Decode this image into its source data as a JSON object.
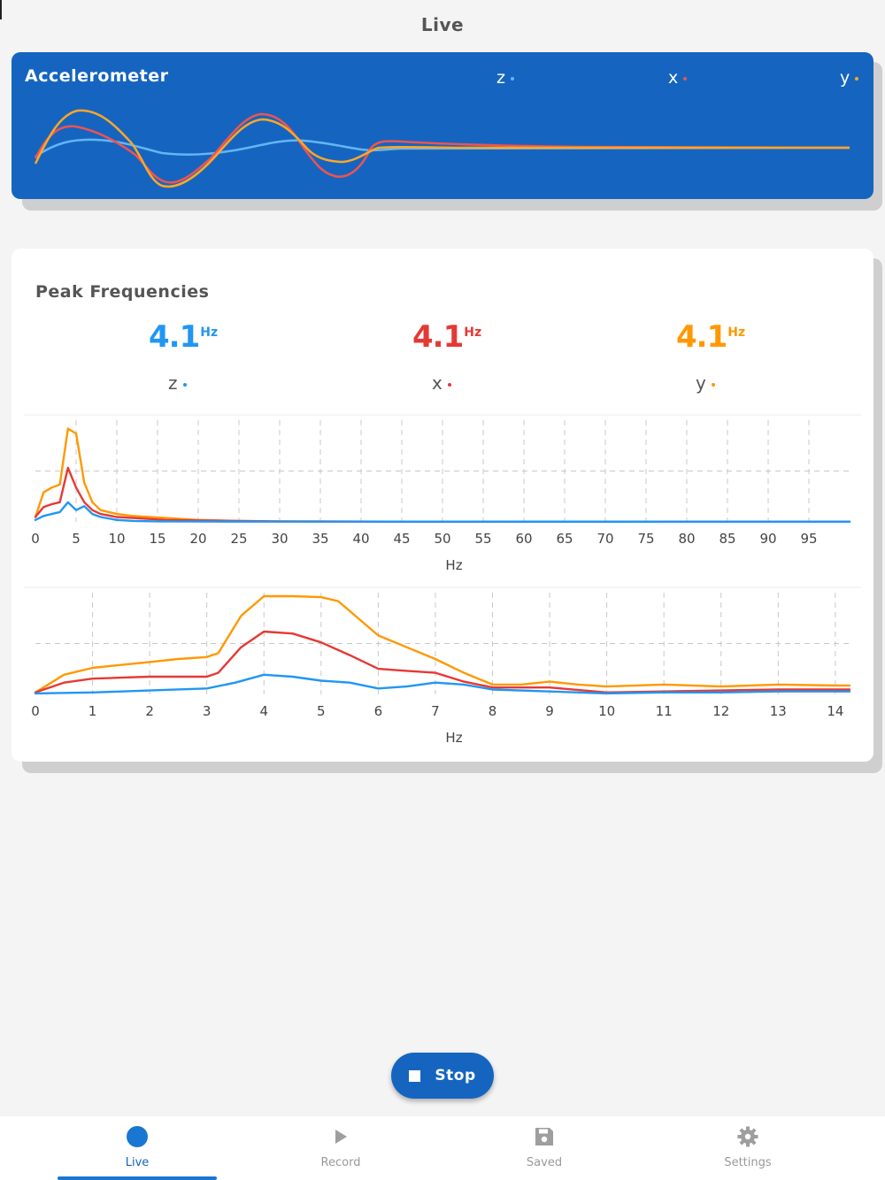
{
  "app": {
    "title": "Live"
  },
  "colors": {
    "primary": "#1565c0",
    "z": "#2196f3",
    "x": "#e53935",
    "y": "#ff9800",
    "z_on_blue": "#64b5f6",
    "x_on_blue": "#ef5350",
    "y_on_blue": "#ffa726"
  },
  "accelerometer": {
    "title": "Accelerometer",
    "axes": [
      {
        "key": "z",
        "label": "z"
      },
      {
        "key": "x",
        "label": "x"
      },
      {
        "key": "y",
        "label": "y"
      }
    ]
  },
  "peak": {
    "title": "Peak Frequencies",
    "unit": "Hz",
    "values": [
      {
        "axis": "z",
        "value": "4.1",
        "unit": "Hz"
      },
      {
        "axis": "x",
        "value": "4.1",
        "unit": "Hz"
      },
      {
        "axis": "y",
        "value": "4.1",
        "unit": "Hz"
      }
    ]
  },
  "chart_data": [
    {
      "type": "line",
      "xlabel": "Hz",
      "xlim": [
        0,
        100
      ],
      "xticks": [
        0,
        5,
        10,
        15,
        20,
        25,
        30,
        35,
        40,
        45,
        50,
        55,
        60,
        65,
        70,
        75,
        80,
        85,
        90,
        95
      ],
      "grid": true,
      "series": [
        {
          "name": "y",
          "points": [
            [
              0,
              0.05
            ],
            [
              1,
              0.3
            ],
            [
              2,
              0.35
            ],
            [
              3,
              0.38
            ],
            [
              4,
              0.95
            ],
            [
              5,
              0.9
            ],
            [
              6,
              0.4
            ],
            [
              7,
              0.2
            ],
            [
              8,
              0.12
            ],
            [
              10,
              0.08
            ],
            [
              12,
              0.06
            ],
            [
              14,
              0.05
            ],
            [
              16,
              0.04
            ],
            [
              18,
              0.03
            ],
            [
              20,
              0.02
            ],
            [
              25,
              0.01
            ],
            [
              30,
              0.005
            ],
            [
              50,
              0.002
            ],
            [
              100,
              0.002
            ]
          ]
        },
        {
          "name": "x",
          "points": [
            [
              0,
              0.05
            ],
            [
              1,
              0.15
            ],
            [
              2,
              0.18
            ],
            [
              3,
              0.2
            ],
            [
              4,
              0.55
            ],
            [
              5,
              0.35
            ],
            [
              6,
              0.2
            ],
            [
              7,
              0.12
            ],
            [
              8,
              0.08
            ],
            [
              10,
              0.05
            ],
            [
              12,
              0.04
            ],
            [
              14,
              0.03
            ],
            [
              16,
              0.02
            ],
            [
              20,
              0.015
            ],
            [
              25,
              0.01
            ],
            [
              30,
              0.005
            ],
            [
              50,
              0.002
            ],
            [
              100,
              0.002
            ]
          ]
        },
        {
          "name": "z",
          "points": [
            [
              0,
              0.02
            ],
            [
              1,
              0.06
            ],
            [
              2,
              0.08
            ],
            [
              3,
              0.1
            ],
            [
              4,
              0.2
            ],
            [
              5,
              0.12
            ],
            [
              6,
              0.16
            ],
            [
              7,
              0.08
            ],
            [
              8,
              0.05
            ],
            [
              10,
              0.02
            ],
            [
              12,
              0.01
            ],
            [
              15,
              0.005
            ],
            [
              20,
              0.004
            ],
            [
              30,
              0.003
            ],
            [
              100,
              0.002
            ]
          ]
        }
      ]
    },
    {
      "type": "line",
      "xlabel": "Hz",
      "xlim": [
        0,
        14.25
      ],
      "xticks": [
        0,
        1,
        2,
        3,
        4,
        5,
        6,
        7,
        8,
        9,
        10,
        11,
        12,
        13,
        14
      ],
      "grid": true,
      "series": [
        {
          "name": "y",
          "points": [
            [
              0,
              0.02
            ],
            [
              0.5,
              0.2
            ],
            [
              1,
              0.27
            ],
            [
              1.5,
              0.3
            ],
            [
              2,
              0.33
            ],
            [
              2.5,
              0.36
            ],
            [
              3,
              0.38
            ],
            [
              3.2,
              0.42
            ],
            [
              3.6,
              0.8
            ],
            [
              4,
              1.0
            ],
            [
              4.5,
              1.0
            ],
            [
              5,
              0.99
            ],
            [
              5.3,
              0.95
            ],
            [
              6,
              0.6
            ],
            [
              6.5,
              0.48
            ],
            [
              7,
              0.36
            ],
            [
              7.5,
              0.22
            ],
            [
              8,
              0.1
            ],
            [
              8.5,
              0.1
            ],
            [
              9,
              0.13
            ],
            [
              9.5,
              0.1
            ],
            [
              10,
              0.08
            ],
            [
              11,
              0.1
            ],
            [
              12,
              0.08
            ],
            [
              13,
              0.1
            ],
            [
              14,
              0.09
            ],
            [
              14.25,
              0.09
            ]
          ]
        },
        {
          "name": "x",
          "points": [
            [
              0,
              0.02
            ],
            [
              0.5,
              0.12
            ],
            [
              1,
              0.16
            ],
            [
              1.5,
              0.17
            ],
            [
              2,
              0.18
            ],
            [
              2.5,
              0.18
            ],
            [
              3,
              0.18
            ],
            [
              3.2,
              0.22
            ],
            [
              3.6,
              0.48
            ],
            [
              4,
              0.64
            ],
            [
              4.5,
              0.62
            ],
            [
              5,
              0.53
            ],
            [
              5.5,
              0.4
            ],
            [
              6,
              0.26
            ],
            [
              6.5,
              0.24
            ],
            [
              7,
              0.22
            ],
            [
              7.5,
              0.13
            ],
            [
              8,
              0.07
            ],
            [
              9,
              0.07
            ],
            [
              10,
              0.02
            ],
            [
              11,
              0.03
            ],
            [
              12,
              0.04
            ],
            [
              13,
              0.05
            ],
            [
              14,
              0.05
            ],
            [
              14.25,
              0.05
            ]
          ]
        },
        {
          "name": "z",
          "points": [
            [
              0,
              0.01
            ],
            [
              1,
              0.02
            ],
            [
              2,
              0.04
            ],
            [
              3,
              0.06
            ],
            [
              3.5,
              0.12
            ],
            [
              4,
              0.2
            ],
            [
              4.5,
              0.18
            ],
            [
              5,
              0.14
            ],
            [
              5.5,
              0.12
            ],
            [
              6,
              0.06
            ],
            [
              6.5,
              0.08
            ],
            [
              7,
              0.12
            ],
            [
              7.5,
              0.1
            ],
            [
              8,
              0.05
            ],
            [
              9,
              0.03
            ],
            [
              10,
              0.01
            ],
            [
              11,
              0.02
            ],
            [
              12,
              0.02
            ],
            [
              13,
              0.03
            ],
            [
              14,
              0.03
            ],
            [
              14.25,
              0.03
            ]
          ]
        }
      ]
    }
  ],
  "stop_button": {
    "label": "Stop"
  },
  "nav": {
    "items": [
      {
        "label": "Live",
        "icon": "circle-icon"
      },
      {
        "label": "Record",
        "icon": "play-icon"
      },
      {
        "label": "Saved",
        "icon": "save-icon"
      },
      {
        "label": "Settings",
        "icon": "gear-icon"
      }
    ]
  }
}
